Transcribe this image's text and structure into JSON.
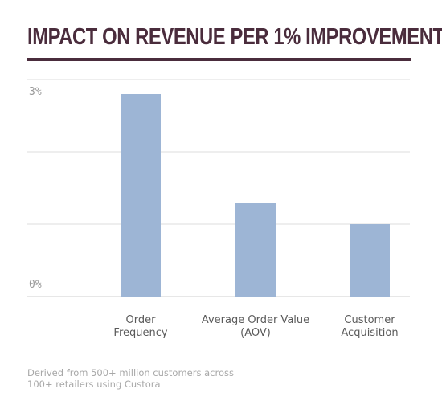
{
  "page": {
    "title": "IMPACT ON REVENUE PER 1% IMPROVEMENT",
    "footnote_line1": "Derived from 500+ million customers across",
    "footnote_line2": "100+ retailers using Custora"
  },
  "chart_data": {
    "type": "bar",
    "title": "IMPACT ON REVENUE PER 1% IMPROVEMENT",
    "categories": [
      [
        "Order",
        "Frequency"
      ],
      [
        "Average Order Value",
        "(AOV)"
      ],
      [
        "Customer",
        "Acquisition"
      ]
    ],
    "values": [
      2.8,
      1.3,
      1.0
    ],
    "unit": "%",
    "ylim": [
      0,
      3
    ],
    "yticks": [
      0,
      1,
      2,
      3
    ],
    "ytick_labels": [
      "0%",
      "",
      "",
      "3%"
    ],
    "grid": true,
    "bar_color": "#9db5d5",
    "grid_color": "#dcdcdc"
  }
}
